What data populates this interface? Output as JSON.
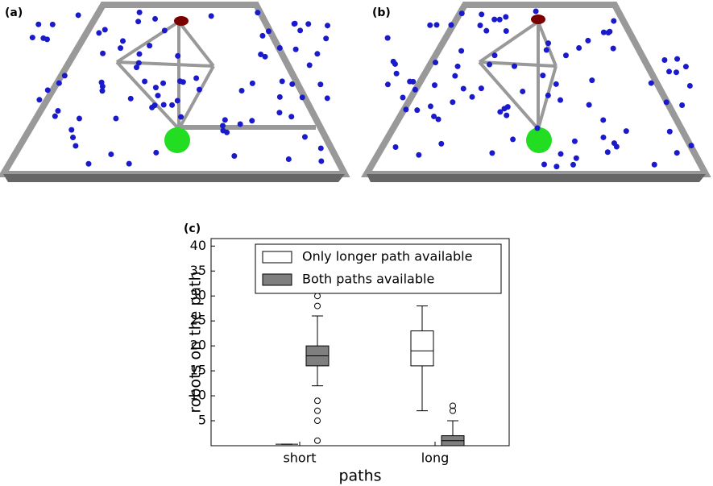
{
  "panel_labels": [
    "(a)",
    "(b)"
  ],
  "chart_data": {
    "type": "box",
    "panel_label": "(c)",
    "ylabel": "robots on the path",
    "xlabel": "paths",
    "categories": [
      "short",
      "long"
    ],
    "ylim": [
      0,
      41.5
    ],
    "yticks": [
      5,
      10,
      15,
      20,
      25,
      30,
      35,
      40
    ],
    "legend": "top-right",
    "series": [
      {
        "name": "Only longer path available",
        "color": "#ffffff",
        "boxes": [
          {
            "min": 0.3,
            "q1": 0.3,
            "median": 0.3,
            "q3": 0.3,
            "max": 0.3,
            "outliers": []
          },
          {
            "min": 7,
            "q1": 16,
            "median": 19,
            "q3": 23,
            "max": 28,
            "outliers": []
          }
        ]
      },
      {
        "name": "Both paths available",
        "color": "#7f7f7f",
        "boxes": [
          {
            "min": 12,
            "q1": 16,
            "median": 18,
            "q3": 20,
            "max": 26,
            "outliers": [
              30,
              28,
              9,
              7,
              5,
              1
            ]
          },
          {
            "min": 0,
            "q1": 0,
            "median": 1,
            "q3": 2,
            "max": 5,
            "outliers": [
              7,
              8
            ]
          }
        ]
      }
    ]
  }
}
